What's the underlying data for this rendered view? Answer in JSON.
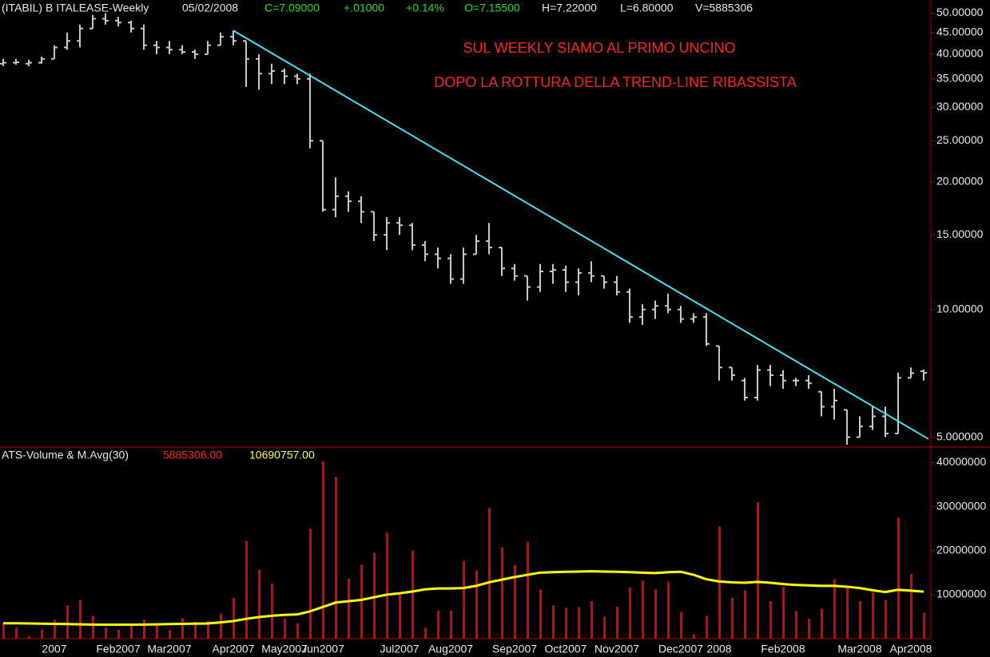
{
  "header": {
    "symbol": "(ITABIL) B ITALEASE-Weekly",
    "date": "05/02/2008",
    "close": "C=7.09000",
    "change": "+.01000",
    "change_pct": "+0.14%",
    "open": "O=7.15500",
    "high": "H=7.22000",
    "low": "L=6.80000",
    "volume": "V=5885306"
  },
  "chart_data": [
    {
      "type": "ohlc",
      "log_scale": true,
      "color": "#c8c8c8",
      "categories": [
        null,
        null,
        null,
        null,
        "2007",
        null,
        null,
        null,
        null,
        "Feb2007",
        null,
        null,
        null,
        "Mar2007",
        null,
        null,
        null,
        null,
        "Apr2007",
        null,
        null,
        null,
        "May2007",
        null,
        null,
        "Jun2007",
        null,
        null,
        null,
        null,
        null,
        "Jul2007",
        null,
        null,
        null,
        "Aug2007",
        null,
        null,
        null,
        null,
        "Sep2007",
        null,
        null,
        null,
        "Oct2007",
        null,
        null,
        null,
        "Nov2007",
        null,
        null,
        null,
        null,
        "Dec2007",
        null,
        null,
        "2008",
        null,
        null,
        null,
        null,
        "Feb2008",
        null,
        null,
        null,
        null,
        null,
        "Mar2008",
        null,
        null,
        null,
        "Apr2008",
        null
      ],
      "open": [
        38,
        38.2,
        38,
        38.2,
        39,
        41.5,
        43,
        46,
        48.5,
        48,
        47.5,
        46,
        42,
        41.5,
        41,
        40.5,
        40,
        42,
        44,
        43,
        39,
        36,
        36.5,
        35.5,
        35,
        25,
        17.2,
        18.5,
        18,
        17,
        15,
        16,
        15.8,
        14.2,
        13.5,
        13.2,
        11.8,
        13.5,
        14.5,
        14,
        12.5,
        12,
        11.3,
        12.3,
        12.4,
        11.6,
        12.2,
        12,
        11.6,
        11,
        9.6,
        10,
        10.2,
        10,
        9.5,
        9.6,
        8.2,
        7.3,
        6.8,
        6.2,
        7.2,
        7,
        6.8,
        6.8,
        6.4,
        5.9,
        5.8,
        5,
        5.3,
        5.6,
        5.1,
        6.9,
        7.155
      ],
      "high": [
        39,
        39,
        38.8,
        39.5,
        42,
        45,
        47,
        49.5,
        50,
        49,
        48,
        47,
        43,
        43,
        42,
        41,
        43,
        45,
        45.5,
        43,
        40,
        38,
        37,
        36,
        36,
        25,
        20.5,
        19,
        18.5,
        17,
        16.5,
        16.5,
        16,
        14.5,
        14,
        13.5,
        14,
        15,
        16,
        14,
        12.8,
        12,
        12.8,
        12.8,
        12.7,
        12.5,
        13,
        12,
        12,
        11.2,
        10.3,
        10.5,
        10.9,
        10.2,
        9.8,
        9.8,
        8.2,
        7.3,
        6.9,
        7.4,
        7.4,
        7.2,
        6.9,
        7,
        6.4,
        6.5,
        5.8,
        5.6,
        5.9,
        5.9,
        7.1,
        7.3,
        7.22
      ],
      "low": [
        37.5,
        37.8,
        37.5,
        38,
        39,
        41,
        41.5,
        46,
        47,
        46.5,
        45,
        41,
        40,
        40,
        40,
        39,
        40,
        42,
        42,
        33.5,
        33,
        34,
        34,
        34,
        24,
        17,
        16.5,
        17,
        16,
        14.5,
        13.8,
        15,
        13.8,
        13,
        12.5,
        11.5,
        11.5,
        13.5,
        13.5,
        12,
        11.7,
        10.5,
        11,
        11.5,
        11,
        10.8,
        11.6,
        11.2,
        10.8,
        9.3,
        9.2,
        9.5,
        9.8,
        9.3,
        9.3,
        8.2,
        6.8,
        6.8,
        6.1,
        6.1,
        6.6,
        6.5,
        6.6,
        6.5,
        5.6,
        5.5,
        4.8,
        5,
        5.2,
        5,
        5.1,
        6.9,
        6.8
      ],
      "close": [
        38.2,
        38.3,
        38.2,
        39,
        41.5,
        43,
        46,
        48.5,
        48,
        47.5,
        46,
        42,
        41.5,
        41,
        40.5,
        40,
        42,
        44,
        43,
        39,
        36,
        36.5,
        35.5,
        35,
        25,
        17.2,
        18.5,
        18,
        17,
        15,
        16,
        15.8,
        14.2,
        13.5,
        13.2,
        11.8,
        13.5,
        14.5,
        14,
        12.5,
        12,
        11.3,
        12.3,
        12.4,
        11.6,
        12.2,
        12,
        11.6,
        11,
        9.6,
        10,
        10.2,
        10,
        9.5,
        9.6,
        8.3,
        7.3,
        7,
        6.2,
        7.2,
        7,
        6.8,
        6.8,
        6.7,
        5.9,
        6.1,
        5,
        5.3,
        5.6,
        5.1,
        6.9,
        7.08,
        7.09
      ],
      "ylim": [
        4.78,
        53.7
      ],
      "yticks": [
        {
          "value": 50,
          "label": "50.00000"
        },
        {
          "value": 45,
          "label": "45.00000"
        },
        {
          "value": 40,
          "label": "40.00000"
        },
        {
          "value": 35,
          "label": "35.00000"
        },
        {
          "value": 30,
          "label": "30.00000"
        },
        {
          "value": 25,
          "label": "25.00000"
        },
        {
          "value": 20,
          "label": "20.00000"
        },
        {
          "value": 15,
          "label": "15.00000"
        },
        {
          "value": 10,
          "label": "10.00000"
        },
        {
          "value": 5,
          "label": "5.000000"
        }
      ],
      "annotations": [
        "SUL WEEKLY SIAMO AL PRIMO UNCINO",
        "DOPO LA ROTTURA DELLA TREND-LINE RIBASSISTA"
      ],
      "trendline": {
        "color": "#40e0f0",
        "from": [
          18,
          45.5
        ],
        "to": [
          72,
          4.95
        ]
      }
    },
    {
      "type": "bar",
      "title": "ATS-Volume & M.Avg(30)",
      "legend_values": [
        {
          "value": 5885306,
          "label": "5885306.00"
        },
        {
          "value": 10690757,
          "label": "10690757.00"
        }
      ],
      "series": [
        {
          "type": "bar",
          "color": "#e00000",
          "values": [
            3400000,
            2500000,
            500000,
            2000000,
            4300000,
            7500000,
            8800000,
            5200000,
            2500000,
            2000000,
            3000000,
            4300000,
            3000000,
            2000000,
            4600000,
            3800000,
            4000000,
            5700000,
            9300000,
            22200000,
            15700000,
            12500000,
            4500000,
            3500000,
            25000000,
            40300000,
            36800000,
            13600000,
            16800000,
            19500000,
            24100000,
            10000000,
            20000000,
            2500000,
            6400000,
            6400000,
            17700000,
            15500000,
            29700000,
            20700000,
            16800000,
            22000000,
            11200000,
            7500000,
            7000000,
            7200000,
            8500000,
            5000000,
            7300000,
            11600000,
            13200000,
            11200000,
            13000000,
            6000000,
            1000000,
            5200000,
            25500000,
            9300000,
            11000000,
            31000000,
            8500000,
            11800000,
            6300000,
            4500000,
            6800000,
            13500000,
            11500000,
            8500000,
            10500000,
            8800000,
            27500000,
            14700000,
            5885306
          ]
        },
        {
          "type": "line",
          "color": "#ffff00",
          "values": [
            3500000,
            3500000,
            3450000,
            3400000,
            3350000,
            3300000,
            3250000,
            3200000,
            3180000,
            3180000,
            3180000,
            3200000,
            3250000,
            3300000,
            3350000,
            3400000,
            3450000,
            3700000,
            4000000,
            4500000,
            4900000,
            5200000,
            5400000,
            5500000,
            6200000,
            7200000,
            8200000,
            8500000,
            8800000,
            9400000,
            10000000,
            10300000,
            10700000,
            11200000,
            11400000,
            11400000,
            11500000,
            12000000,
            12800000,
            13400000,
            14000000,
            14500000,
            15000000,
            15100000,
            15200000,
            15250000,
            15300000,
            15250000,
            15200000,
            15100000,
            15000000,
            14900000,
            15100000,
            15200000,
            14500000,
            13500000,
            13000000,
            12800000,
            12700000,
            12900000,
            12700000,
            12400000,
            12200000,
            12100000,
            12000000,
            12000000,
            11800000,
            11500000,
            11000000,
            10600000,
            11100000,
            10900000,
            10690757
          ]
        }
      ],
      "ylim": [
        0,
        43000000
      ],
      "yticks": [
        40000000,
        30000000,
        20000000,
        10000000
      ]
    }
  ]
}
